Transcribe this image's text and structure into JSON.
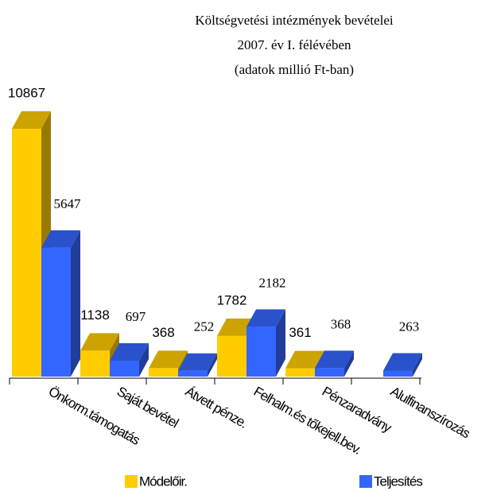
{
  "chart_data": {
    "type": "bar3d",
    "title": [
      "Költségvetési intézmények bevételei",
      "2007. év I. félévében",
      "(adatok millió Ft-ban)"
    ],
    "categories": [
      "Önkorm.támogatás",
      "Saját bevétel",
      "Átvett pénze.",
      "Felhalm.és tőkejell.bev.",
      "Pénzaradvány",
      "Alulfinanszírozás"
    ],
    "series": [
      {
        "name": "Módelőir.",
        "color": "#ffcc00",
        "values": [
          10867,
          1138,
          368,
          1782,
          361,
          null
        ]
      },
      {
        "name": "Teljesítés",
        "color": "#3366ff",
        "values": [
          5647,
          697,
          252,
          2182,
          368,
          263
        ]
      }
    ]
  }
}
